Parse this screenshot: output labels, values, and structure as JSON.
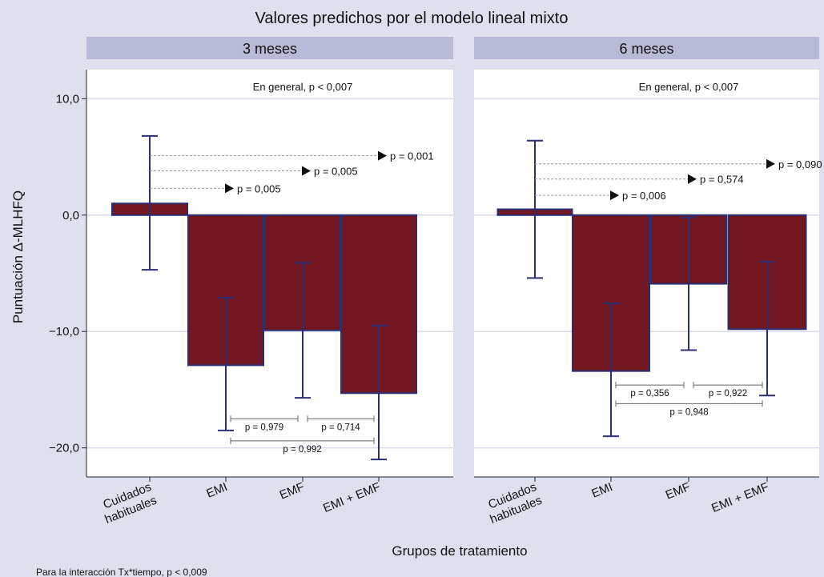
{
  "chart_data": {
    "type": "bar",
    "title": "Valores predichos por el modelo lineal mixto",
    "xlabel": "Grupos de tratamiento",
    "ylabel": "Puntuación Δ-MLHFQ",
    "footnote": "Para la interacción Tx*tiempo, p < 0,009",
    "ylim": [
      -22.5,
      12.5
    ],
    "yticks": [
      10,
      0,
      -10,
      -20
    ],
    "ytick_labels": [
      "10,0",
      "0,0",
      "−10,0",
      "−20,0"
    ],
    "grid": true,
    "categories": [
      "Cuidados habituales",
      "EMI",
      "EMF",
      "EMI + EMF"
    ],
    "category_lines": [
      [
        "Cuidados",
        "habituales"
      ],
      [
        "EMI"
      ],
      [
        "EMF"
      ],
      [
        "EMI + EMF"
      ]
    ],
    "colors": {
      "bar": "#721722",
      "bar_edge": "#2b2f72",
      "whisker": "#2b2f72",
      "strip": "#b7bcd6",
      "plot_bg": "#ffffff",
      "page_bg": "#dde1ef"
    },
    "panels": [
      {
        "label": "3 meses",
        "overall": "En general, p < 0,007",
        "values": [
          1.0,
          -12.9,
          -9.9,
          -15.3
        ],
        "ci_low": [
          -4.7,
          -18.5,
          -15.7,
          -21.0
        ],
        "ci_high": [
          6.8,
          -7.1,
          -4.1,
          -9.5
        ],
        "vs_reference": [
          {
            "target": "EMI",
            "level": 2.3,
            "label": "p = 0,005"
          },
          {
            "target": "EMF",
            "level": 3.8,
            "label": "p = 0,005"
          },
          {
            "target": "EMI + EMF",
            "level": 5.1,
            "label": "p = 0,001"
          }
        ],
        "pairwise": [
          {
            "from": "EMI",
            "to": "EMF",
            "level": -17.5,
            "label": "p = 0,979"
          },
          {
            "from": "EMF",
            "to": "EMI + EMF",
            "level": -17.5,
            "label": "p = 0,714"
          },
          {
            "from": "EMI",
            "to": "EMI + EMF",
            "level": -19.4,
            "label": "p = 0,992"
          }
        ]
      },
      {
        "label": "6 meses",
        "overall": "En general, p < 0,007",
        "values": [
          0.5,
          -13.4,
          -5.9,
          -9.8
        ],
        "ci_low": [
          -5.4,
          -19.0,
          -11.6,
          -15.5
        ],
        "ci_high": [
          6.4,
          -7.6,
          -0.2,
          -4.0
        ],
        "vs_reference": [
          {
            "target": "EMI",
            "level": 1.7,
            "label": "p = 0,006"
          },
          {
            "target": "EMF",
            "level": 3.1,
            "label": "p = 0,574"
          },
          {
            "target": "EMI + EMF",
            "level": 4.4,
            "label": "p = 0,090"
          }
        ],
        "pairwise": [
          {
            "from": "EMI",
            "to": "EMF",
            "level": -14.6,
            "label": "p = 0,356"
          },
          {
            "from": "EMF",
            "to": "EMI + EMF",
            "level": -14.6,
            "label": "p = 0,922"
          },
          {
            "from": "EMI",
            "to": "EMI + EMF",
            "level": -16.2,
            "label": "p = 0,948"
          }
        ]
      }
    ]
  }
}
